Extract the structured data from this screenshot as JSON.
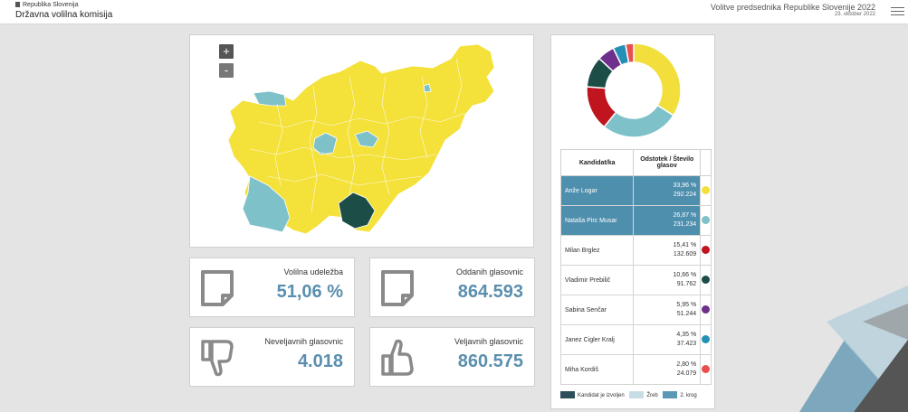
{
  "header": {
    "org_small": "Republika Slovenija",
    "org_big": "Državna volilna komisija",
    "title": "Volitve predsednika Republike Slovenije 2022",
    "date": "23. oktober 2022"
  },
  "map": {
    "zoom_in": "+",
    "zoom_out": "-"
  },
  "stats": [
    {
      "label": "Volilna udeležba",
      "value": "51,06 %",
      "icon": "document-icon"
    },
    {
      "label": "Oddanih glasovnic",
      "value": "864.593",
      "icon": "document-icon"
    },
    {
      "label": "Neveljavnih glasovnic",
      "value": "4.018",
      "icon": "thumbs-down-icon"
    },
    {
      "label": "Veljavnih glasovnic",
      "value": "860.575",
      "icon": "thumbs-up-icon"
    }
  ],
  "table": {
    "col_name": "Kandidat/ka",
    "col_pct": "Odstotek / Število glasov",
    "rows": [
      {
        "name": "Anže Logar",
        "pct": "33,96 %",
        "votes": "292.224",
        "color": "#f2df3c",
        "highlight": true
      },
      {
        "name": "Nataša Pirc Musar",
        "pct": "26,87 %",
        "votes": "231.234",
        "color": "#7fc1c9",
        "highlight": true
      },
      {
        "name": "Milan Brglez",
        "pct": "15,41 %",
        "votes": "132.609",
        "color": "#c0141e",
        "highlight": false
      },
      {
        "name": "Vladimir Prebilič",
        "pct": "10,66 %",
        "votes": "91.762",
        "color": "#1d4d47",
        "highlight": false
      },
      {
        "name": "Sabina Senčar",
        "pct": "5,95 %",
        "votes": "51.244",
        "color": "#6f2f8c",
        "highlight": false
      },
      {
        "name": "Janez Cigler Kralj",
        "pct": "4,35 %",
        "votes": "37.423",
        "color": "#2590b5",
        "highlight": false
      },
      {
        "name": "Miha Kordiš",
        "pct": "2,80 %",
        "votes": "24.079",
        "color": "#e94f4f",
        "highlight": false
      }
    ]
  },
  "legend": [
    {
      "label": "Kandidat je izvoljen",
      "color": "#2d4f5c"
    },
    {
      "label": "Žreb",
      "color": "#c7dde6"
    },
    {
      "label": "2. krog",
      "color": "#5a98b5"
    }
  ]
}
